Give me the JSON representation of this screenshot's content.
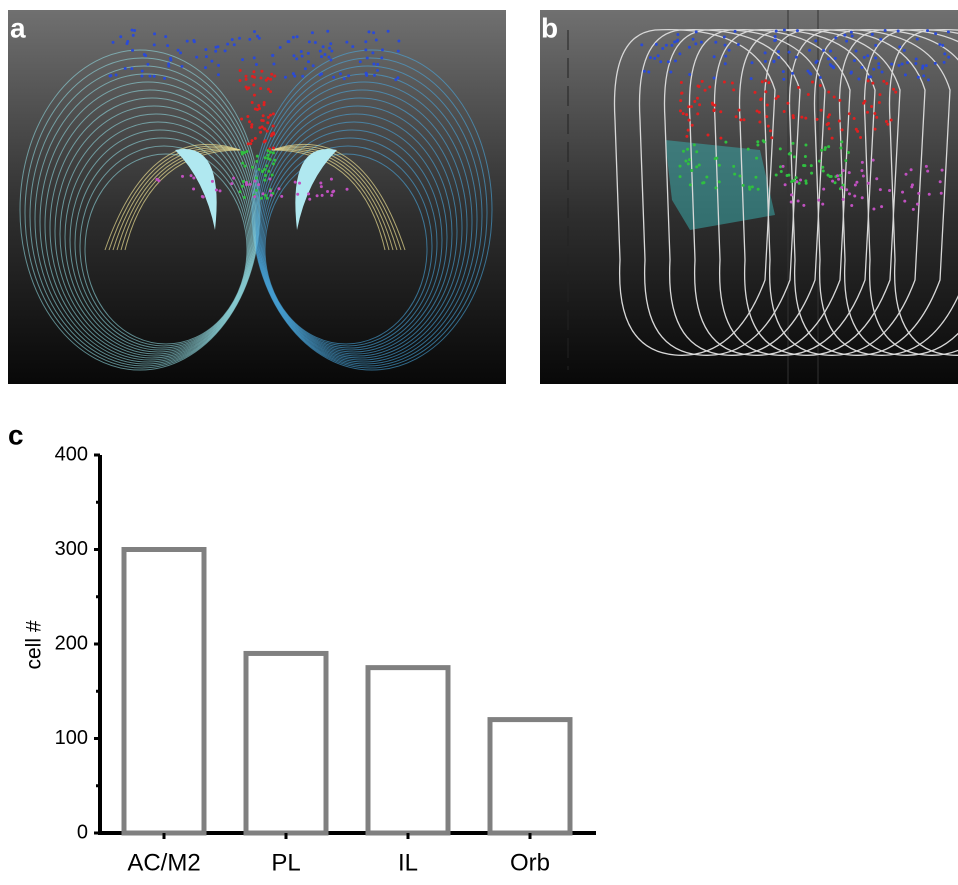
{
  "panel_labels": [
    "a",
    "b",
    "c"
  ],
  "chart_data": {
    "type": "bar",
    "ylabel": "cell #",
    "categories": [
      "AC/M2",
      "PL",
      "IL",
      "Orb"
    ],
    "values": [
      300,
      190,
      175,
      120
    ],
    "color": "#808080",
    "ylim": [
      0,
      400
    ],
    "yticks": [
      0,
      100,
      200,
      300,
      400
    ],
    "grid": false
  }
}
